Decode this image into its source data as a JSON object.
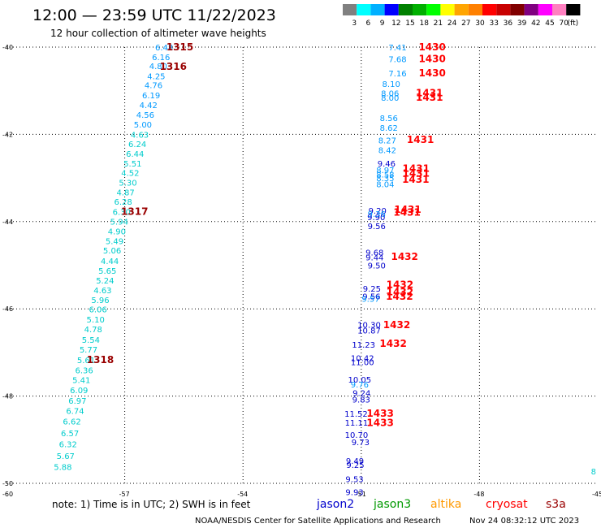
{
  "header": {
    "title": "12:00 — 23:59 UTC 11/22/2023",
    "subtitle": "12 hour collection of altimeter wave heights"
  },
  "scale": {
    "colors": [
      "#808080",
      "#00ffff",
      "#00b0ff",
      "#0000ff",
      "#008000",
      "#00b000",
      "#00ff00",
      "#ffff00",
      "#ffa500",
      "#ff8000",
      "#ff0000",
      "#c80000",
      "#800000",
      "#800080",
      "#ff00ff",
      "#ff80c0",
      "#000000"
    ],
    "labels": [
      "3",
      "6",
      "9",
      "12",
      "15",
      "18",
      "21",
      "24",
      "27",
      "30",
      "33",
      "36",
      "39",
      "42",
      "45",
      "70"
    ],
    "unit": "(ft)"
  },
  "axes": {
    "lat_labels": [
      "-40",
      "-42",
      "-44",
      "-46",
      "-48",
      "-50"
    ],
    "lon_labels": [
      "-60",
      "-57",
      "-54",
      "-51",
      "-48",
      "-45"
    ]
  },
  "colors": {
    "jason2": "#0000cc",
    "jason3": "#009900",
    "altika": "#ff9900",
    "cryosat": "#ff0000",
    "s3a": "#990000",
    "swh_cyan": "#00cccc",
    "swh_lightblue": "#0099ff",
    "time_darkred": "#990000",
    "time_red": "#ff0000"
  },
  "tracks": {
    "left_swh": [
      {
        "v": "6.48",
        "lat": -40.0,
        "lon": -56.0,
        "c": "lb"
      },
      {
        "v": "6.16",
        "lat": -40.22,
        "lon": -56.08,
        "c": "lb"
      },
      {
        "v": "4.80",
        "lat": -40.43,
        "lon": -56.15,
        "c": "lb"
      },
      {
        "v": "4.25",
        "lat": -40.66,
        "lon": -56.2,
        "c": "lb"
      },
      {
        "v": "4.76",
        "lat": -40.87,
        "lon": -56.27,
        "c": "lb"
      },
      {
        "v": "6.19",
        "lat": -41.1,
        "lon": -56.33,
        "c": "lb"
      },
      {
        "v": "4.42",
        "lat": -41.32,
        "lon": -56.4,
        "c": "lb"
      },
      {
        "v": "4.56",
        "lat": -41.55,
        "lon": -56.48,
        "c": "lb"
      },
      {
        "v": "5.00",
        "lat": -41.77,
        "lon": -56.54,
        "c": "lb"
      },
      {
        "v": "4.63",
        "lat": -42.0,
        "lon": -56.62,
        "c": "cy"
      },
      {
        "v": "6.24",
        "lat": -42.22,
        "lon": -56.68,
        "c": "cy"
      },
      {
        "v": "6.44",
        "lat": -42.44,
        "lon": -56.74,
        "c": "cy"
      },
      {
        "v": "5.51",
        "lat": -42.66,
        "lon": -56.8,
        "c": "cy"
      },
      {
        "v": "4.52",
        "lat": -42.88,
        "lon": -56.86,
        "c": "cy"
      },
      {
        "v": "5.30",
        "lat": -43.1,
        "lon": -56.92,
        "c": "cy"
      },
      {
        "v": "4.87",
        "lat": -43.32,
        "lon": -56.98,
        "c": "cy"
      },
      {
        "v": "6.28",
        "lat": -43.54,
        "lon": -57.04,
        "c": "cy"
      },
      {
        "v": "6.30",
        "lat": -43.77,
        "lon": -57.08,
        "c": "cy"
      },
      {
        "v": "5.94",
        "lat": -43.99,
        "lon": -57.14,
        "c": "cy"
      },
      {
        "v": "4.90",
        "lat": -44.22,
        "lon": -57.2,
        "c": "cy"
      },
      {
        "v": "5.49",
        "lat": -44.44,
        "lon": -57.26,
        "c": "cy"
      },
      {
        "v": "5.06",
        "lat": -44.66,
        "lon": -57.32,
        "c": "cy"
      },
      {
        "v": "4.44",
        "lat": -44.9,
        "lon": -57.38,
        "c": "cy"
      },
      {
        "v": "5.65",
        "lat": -45.12,
        "lon": -57.44,
        "c": "cy"
      },
      {
        "v": "5.24",
        "lat": -45.34,
        "lon": -57.5,
        "c": "cy"
      },
      {
        "v": "4.63",
        "lat": -45.57,
        "lon": -57.56,
        "c": "cy"
      },
      {
        "v": "5.96",
        "lat": -45.79,
        "lon": -57.62,
        "c": "cy"
      },
      {
        "v": "6.06",
        "lat": -46.01,
        "lon": -57.68,
        "c": "cy"
      },
      {
        "v": "5.10",
        "lat": -46.24,
        "lon": -57.74,
        "c": "cy"
      },
      {
        "v": "4.78",
        "lat": -46.46,
        "lon": -57.8,
        "c": "cy"
      },
      {
        "v": "5.54",
        "lat": -46.7,
        "lon": -57.86,
        "c": "cy"
      },
      {
        "v": "5.77",
        "lat": -46.93,
        "lon": -57.92,
        "c": "cy"
      },
      {
        "v": "5.61",
        "lat": -47.17,
        "lon": -57.98,
        "c": "cy"
      },
      {
        "v": "6.36",
        "lat": -47.4,
        "lon": -58.03,
        "c": "cy"
      },
      {
        "v": "5.41",
        "lat": -47.63,
        "lon": -58.1,
        "c": "cy"
      },
      {
        "v": "6.09",
        "lat": -47.86,
        "lon": -58.16,
        "c": "cy"
      },
      {
        "v": "6.97",
        "lat": -48.1,
        "lon": -58.2,
        "c": "cy"
      },
      {
        "v": "6.74",
        "lat": -48.33,
        "lon": -58.26,
        "c": "cy"
      },
      {
        "v": "6.62",
        "lat": -48.58,
        "lon": -58.34,
        "c": "cy"
      },
      {
        "v": "6.57",
        "lat": -48.85,
        "lon": -58.39,
        "c": "cy"
      },
      {
        "v": "6.32",
        "lat": -49.1,
        "lon": -58.44,
        "c": "cy"
      },
      {
        "v": "5.67",
        "lat": -49.37,
        "lon": -58.5,
        "c": "cy"
      },
      {
        "v": "5.88",
        "lat": -49.62,
        "lon": -58.57,
        "c": "cy"
      }
    ],
    "left_times": [
      {
        "v": "1315",
        "lat": -40.0,
        "lon": -55.6
      },
      {
        "v": "1316",
        "lat": -40.45,
        "lon": -55.77
      },
      {
        "v": "1317",
        "lat": -43.77,
        "lon": -56.75
      },
      {
        "v": "1318",
        "lat": -47.17,
        "lon": -57.62
      }
    ],
    "right_swh": [
      {
        "v": "7.41",
        "lat": -40.0,
        "lon": -50.08,
        "c": "lb"
      },
      {
        "v": "7.68",
        "lat": -40.27,
        "lon": -50.08,
        "c": "lb"
      },
      {
        "v": "7.16",
        "lat": -40.6,
        "lon": -50.08,
        "c": "lb"
      },
      {
        "v": "8.10",
        "lat": -40.84,
        "lon": -50.24,
        "c": "lb"
      },
      {
        "v": "8.06",
        "lat": -41.05,
        "lon": -50.27,
        "c": "lb"
      },
      {
        "v": "8.00",
        "lat": -41.15,
        "lon": -50.27,
        "c": "lb"
      },
      {
        "v": "8.56",
        "lat": -41.62,
        "lon": -50.3,
        "c": "lb"
      },
      {
        "v": "8.62",
        "lat": -41.84,
        "lon": -50.3,
        "c": "lb"
      },
      {
        "v": "8.27",
        "lat": -42.13,
        "lon": -50.34,
        "c": "lb"
      },
      {
        "v": "8.42",
        "lat": -42.36,
        "lon": -50.34,
        "c": "lb"
      },
      {
        "v": "9.46",
        "lat": -42.66,
        "lon": -50.36,
        "c": "jb"
      },
      {
        "v": "8.97",
        "lat": -42.81,
        "lon": -50.39,
        "c": "lb"
      },
      {
        "v": "8.58",
        "lat": -42.91,
        "lon": -50.39,
        "c": "lb"
      },
      {
        "v": "8.35",
        "lat": -43.0,
        "lon": -50.39,
        "c": "lb"
      },
      {
        "v": "8.04",
        "lat": -43.14,
        "lon": -50.39,
        "c": "lb"
      },
      {
        "v": "9.20",
        "lat": -43.74,
        "lon": -50.59,
        "c": "jb"
      },
      {
        "v": "9.36",
        "lat": -43.82,
        "lon": -50.61,
        "c": "lb"
      },
      {
        "v": "9.90",
        "lat": -43.89,
        "lon": -50.62,
        "c": "jb"
      },
      {
        "v": "9.56",
        "lat": -44.1,
        "lon": -50.61,
        "c": "jb"
      },
      {
        "v": "9.68",
        "lat": -44.7,
        "lon": -50.66,
        "c": "jb"
      },
      {
        "v": "9.44",
        "lat": -44.81,
        "lon": -50.66,
        "c": "jb"
      },
      {
        "v": "9.50",
        "lat": -45.0,
        "lon": -50.61,
        "c": "jb"
      },
      {
        "v": "9.25",
        "lat": -45.53,
        "lon": -50.73,
        "c": "jb"
      },
      {
        "v": "9.56",
        "lat": -45.71,
        "lon": -50.74,
        "c": "jb"
      },
      {
        "v": "9.57",
        "lat": -45.76,
        "lon": -50.76,
        "c": "lb"
      },
      {
        "v": "10.30",
        "lat": -46.36,
        "lon": -50.8,
        "c": "jb"
      },
      {
        "v": "10.87",
        "lat": -46.49,
        "lon": -50.8,
        "c": "jb"
      },
      {
        "v": "11.23",
        "lat": -46.82,
        "lon": -50.94,
        "c": "jb"
      },
      {
        "v": "10.42",
        "lat": -47.12,
        "lon": -50.97,
        "c": "jb"
      },
      {
        "v": "11.00",
        "lat": -47.22,
        "lon": -50.97,
        "c": "jb"
      },
      {
        "v": "10.05",
        "lat": -47.62,
        "lon": -51.04,
        "c": "jb"
      },
      {
        "v": "9.76",
        "lat": -47.73,
        "lon": -51.04,
        "c": "lb"
      },
      {
        "v": "9.24",
        "lat": -47.92,
        "lon": -50.99,
        "c": "jb"
      },
      {
        "v": "9.83",
        "lat": -48.07,
        "lon": -51.0,
        "c": "jb"
      },
      {
        "v": "11.52",
        "lat": -48.4,
        "lon": -51.13,
        "c": "jb"
      },
      {
        "v": "11.11",
        "lat": -48.6,
        "lon": -51.12,
        "c": "jb"
      },
      {
        "v": "10.70",
        "lat": -48.88,
        "lon": -51.12,
        "c": "jb"
      },
      {
        "v": "9.73",
        "lat": -49.05,
        "lon": -51.02,
        "c": "jb"
      },
      {
        "v": "9.49",
        "lat": -49.48,
        "lon": -51.16,
        "c": "jb"
      },
      {
        "v": "9.25",
        "lat": -49.57,
        "lon": -51.15,
        "c": "jb"
      },
      {
        "v": "9.53",
        "lat": -49.9,
        "lon": -51.17,
        "c": "jb"
      },
      {
        "v": "9.93",
        "lat": -50.2,
        "lon": -51.17,
        "c": "jb"
      }
    ],
    "right_times": [
      {
        "v": "1430",
        "lat": -40.0,
        "lon": -49.2
      },
      {
        "v": "1430",
        "lat": -40.27,
        "lon": -49.2
      },
      {
        "v": "1430",
        "lat": -40.6,
        "lon": -49.2
      },
      {
        "v": "1431",
        "lat": -41.05,
        "lon": -49.27
      },
      {
        "v": "1431",
        "lat": -41.15,
        "lon": -49.27
      },
      {
        "v": "1431",
        "lat": -42.12,
        "lon": -49.5
      },
      {
        "v": "1431",
        "lat": -42.78,
        "lon": -49.61
      },
      {
        "v": "1431",
        "lat": -42.9,
        "lon": -49.61
      },
      {
        "v": "1431",
        "lat": -43.04,
        "lon": -49.62
      },
      {
        "v": "1431",
        "lat": -43.72,
        "lon": -49.82
      },
      {
        "v": "1431",
        "lat": -43.79,
        "lon": -49.84
      },
      {
        "v": "1432",
        "lat": -44.8,
        "lon": -49.9
      },
      {
        "v": "1432",
        "lat": -45.45,
        "lon": -50.02
      },
      {
        "v": "1432",
        "lat": -45.61,
        "lon": -50.02
      },
      {
        "v": "1432",
        "lat": -45.72,
        "lon": -50.03
      },
      {
        "v": "1432",
        "lat": -46.37,
        "lon": -50.1
      },
      {
        "v": "1432",
        "lat": -46.8,
        "lon": -50.19
      },
      {
        "v": "1433",
        "lat": -48.4,
        "lon": -50.52
      },
      {
        "v": "1433",
        "lat": -48.61,
        "lon": -50.52
      }
    ],
    "edge_mark": {
      "v": "8",
      "lat": -49.72,
      "lon": -45.0
    }
  },
  "footer": {
    "note": "note:  1) Time is in UTC; 2) SWH is in feet",
    "satellites": [
      {
        "name": "jason2",
        "color": "#0000cc"
      },
      {
        "name": "jason3",
        "color": "#009900"
      },
      {
        "name": "altika",
        "color": "#ff9900"
      },
      {
        "name": "cryosat",
        "color": "#ff0000"
      },
      {
        "name": "s3a",
        "color": "#990000"
      }
    ],
    "credit": "NOAA/NESDIS Center for Satellite Applications and Research",
    "timestamp": "Nov 24 08:32:12 UTC 2023"
  }
}
